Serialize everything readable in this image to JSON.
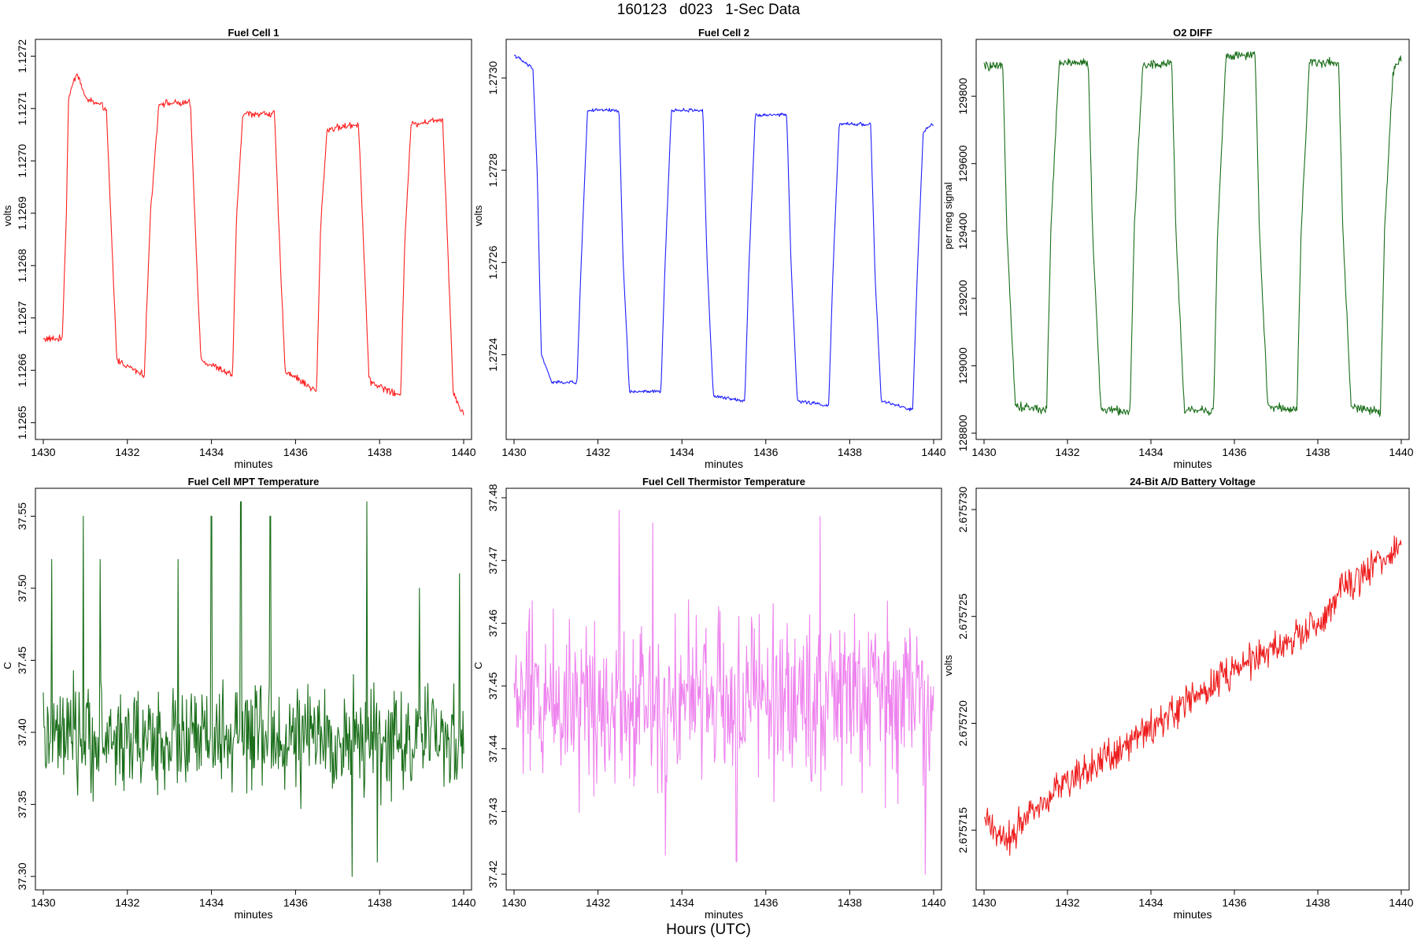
{
  "figure": {
    "title": "160123   d023   1-Sec Data",
    "xlabel": "Hours (UTC)"
  },
  "chart_data": [
    {
      "type": "line",
      "title": "Fuel Cell 1",
      "xlabel": "minutes",
      "ylabel": "volts",
      "xlim": [
        1430,
        1440
      ],
      "ylim": [
        1.12648,
        1.12722
      ],
      "x_ticks": [
        "1430",
        "1432",
        "1434",
        "1436",
        "1438",
        "1440"
      ],
      "y_ticks": [
        "1.1265",
        "1.1266",
        "1.1267",
        "1.1268",
        "1.1269",
        "1.1270",
        "1.1271",
        "1.1272"
      ],
      "color": "#ff2020",
      "pattern": "square",
      "low": 1.12659,
      "high": 1.12711,
      "noise": 4.5e-06,
      "series": [
        {
          "x": [
            1430.0,
            1430.45,
            1430.55,
            1430.6,
            1430.8,
            1431.0,
            1431.5,
            1431.6,
            1431.75,
            1432.4,
            1432.55,
            1432.75,
            1433.5,
            1433.6,
            1433.75,
            1434.5,
            1434.6,
            1434.75,
            1435.5,
            1435.6,
            1435.75,
            1436.5,
            1436.6,
            1436.75,
            1437.5,
            1437.6,
            1437.75,
            1438.5,
            1438.6,
            1438.75,
            1439.5,
            1439.6,
            1439.75,
            1439.95
          ],
          "y": [
            1.12666,
            1.12666,
            1.1269,
            1.12712,
            1.12717,
            1.12712,
            1.1271,
            1.1269,
            1.12662,
            1.12659,
            1.1269,
            1.12711,
            1.12711,
            1.1269,
            1.12662,
            1.12659,
            1.1269,
            1.12709,
            1.12709,
            1.12688,
            1.1266,
            1.12656,
            1.12688,
            1.12706,
            1.12707,
            1.12688,
            1.12658,
            1.12655,
            1.12685,
            1.12707,
            1.12708,
            1.12688,
            1.12656,
            1.12652
          ]
        }
      ]
    },
    {
      "type": "line",
      "title": "Fuel Cell 2",
      "xlabel": "minutes",
      "ylabel": "volts",
      "xlim": [
        1430,
        1440
      ],
      "ylim": [
        1.27223,
        1.27307
      ],
      "x_ticks": [
        "1430",
        "1432",
        "1434",
        "1436",
        "1438",
        "1440"
      ],
      "y_ticks": [
        "1.2724",
        "1.2726",
        "1.2728",
        "1.2730"
      ],
      "color": "#1f1fff",
      "pattern": "square",
      "low": 1.27233,
      "high": 1.27293,
      "noise": 2.5e-06,
      "series": [
        {
          "x": [
            1430.0,
            1430.45,
            1430.55,
            1430.65,
            1430.9,
            1431.5,
            1431.6,
            1431.75,
            1432.5,
            1432.6,
            1432.75,
            1433.5,
            1433.6,
            1433.75,
            1434.5,
            1434.6,
            1434.75,
            1435.5,
            1435.6,
            1435.75,
            1436.5,
            1436.6,
            1436.75,
            1437.5,
            1437.6,
            1437.75,
            1438.5,
            1438.6,
            1438.75,
            1439.5,
            1439.6,
            1439.75,
            1439.95
          ],
          "y": [
            1.27305,
            1.27302,
            1.2728,
            1.2724,
            1.27234,
            1.27234,
            1.2726,
            1.27293,
            1.27293,
            1.2726,
            1.27232,
            1.27232,
            1.2726,
            1.27293,
            1.27293,
            1.2726,
            1.27231,
            1.2723,
            1.2726,
            1.27292,
            1.27292,
            1.2726,
            1.2723,
            1.27229,
            1.27258,
            1.2729,
            1.2729,
            1.27258,
            1.2723,
            1.27228,
            1.27255,
            1.27288,
            1.2729
          ]
        }
      ]
    },
    {
      "type": "line",
      "title": "O2 DIFF",
      "xlabel": "minutes",
      "ylabel": "per meg signal",
      "xlim": [
        1430,
        1440
      ],
      "ylim": [
        128800,
        129950
      ],
      "x_ticks": [
        "1430",
        "1432",
        "1434",
        "1436",
        "1438",
        "1440"
      ],
      "y_ticks": [
        "128800",
        "129000",
        "129200",
        "129400",
        "129600",
        "129800"
      ],
      "color": "#1a6e1a",
      "pattern": "square",
      "low": 128860,
      "high": 129900,
      "noise": 9,
      "series": [
        {
          "x": [
            1430.0,
            1430.45,
            1430.55,
            1430.75,
            1431.5,
            1431.6,
            1431.8,
            1432.5,
            1432.6,
            1432.8,
            1433.5,
            1433.6,
            1433.8,
            1434.5,
            1434.6,
            1434.8,
            1435.5,
            1435.6,
            1435.8,
            1436.5,
            1436.6,
            1436.8,
            1437.5,
            1437.6,
            1437.8,
            1438.5,
            1438.6,
            1438.8,
            1439.5,
            1439.6,
            1439.8,
            1439.95
          ],
          "y": [
            129890,
            129885,
            129400,
            128880,
            128870,
            129400,
            129900,
            129900,
            129400,
            128870,
            128865,
            129400,
            129890,
            129900,
            129400,
            128870,
            128865,
            129400,
            129920,
            129920,
            129400,
            128880,
            128870,
            129400,
            129900,
            129900,
            129400,
            128880,
            128860,
            129400,
            129870,
            129910
          ]
        }
      ]
    },
    {
      "type": "line",
      "title": "Fuel Cell MPT Temperature",
      "xlabel": "minutes",
      "ylabel": "C",
      "xlim": [
        1430,
        1440
      ],
      "ylim": [
        37.295,
        37.565
      ],
      "x_ticks": [
        "1430",
        "1432",
        "1434",
        "1436",
        "1438",
        "1440"
      ],
      "y_ticks": [
        "37.30",
        "37.35",
        "37.40",
        "37.45",
        "37.50",
        "37.55"
      ],
      "color": "#1a6e1a",
      "pattern": "noise",
      "mean": 37.395,
      "noise": 0.022,
      "spikes": [
        [
          1430.2,
          37.52
        ],
        [
          1430.95,
          37.55
        ],
        [
          1431.35,
          37.52
        ],
        [
          1433.2,
          37.52
        ],
        [
          1434.0,
          37.55
        ],
        [
          1434.7,
          37.56
        ],
        [
          1435.4,
          37.55
        ],
        [
          1437.7,
          37.56
        ],
        [
          1438.95,
          37.5
        ],
        [
          1439.9,
          37.51
        ],
        [
          1437.35,
          37.3
        ],
        [
          1437.95,
          37.31
        ]
      ],
      "series": [
        {
          "x": [
            1430.0,
            1440.0
          ],
          "y": [
            37.4,
            37.4
          ]
        }
      ]
    },
    {
      "type": "line",
      "title": "Fuel Cell Thermistor Temperature",
      "xlabel": "minutes",
      "ylabel": "C",
      "xlim": [
        1430,
        1440
      ],
      "ylim": [
        37.4185,
        37.4805
      ],
      "x_ticks": [
        "1430",
        "1432",
        "1434",
        "1436",
        "1438",
        "1440"
      ],
      "y_ticks": [
        "37.42",
        "37.43",
        "37.44",
        "37.45",
        "37.46",
        "37.47",
        "37.48"
      ],
      "color": "#ee82ee",
      "pattern": "noise",
      "mean": 37.448,
      "noise": 0.0085,
      "spikes": [
        [
          1432.5,
          37.478
        ],
        [
          1433.3,
          37.476
        ],
        [
          1437.3,
          37.477
        ],
        [
          1433.6,
          37.423
        ],
        [
          1435.3,
          37.422
        ],
        [
          1439.8,
          37.42
        ]
      ],
      "series": [
        {
          "x": [
            1430.0,
            1440.0
          ],
          "y": [
            37.448,
            37.447
          ]
        }
      ]
    },
    {
      "type": "line",
      "title": "24-Bit A/D Battery Voltage",
      "xlabel": "minutes",
      "ylabel": "volts",
      "xlim": [
        1430,
        1440
      ],
      "ylim": [
        2.6757125,
        2.6757307
      ],
      "x_ticks": [
        "1430",
        "1432",
        "1434",
        "1436",
        "1438",
        "1440"
      ],
      "y_ticks": [
        "2.675715",
        "2.675720",
        "2.675725",
        "2.675730"
      ],
      "color": "#ee1c1c",
      "pattern": "trend",
      "noise": 5.5e-07,
      "series": [
        {
          "x": [
            1430.0,
            1430.6,
            1431.0,
            1432.0,
            1433.0,
            1434.0,
            1435.0,
            1436.0,
            1437.0,
            1438.0,
            1438.6,
            1439.0,
            1439.95
          ],
          "y": [
            2.6757155,
            2.6757145,
            2.6757158,
            2.6757173,
            2.6757185,
            2.6757198,
            2.6757212,
            2.6757225,
            2.6757235,
            2.6757245,
            2.6757262,
            2.6757268,
            2.6757283
          ]
        }
      ]
    }
  ]
}
